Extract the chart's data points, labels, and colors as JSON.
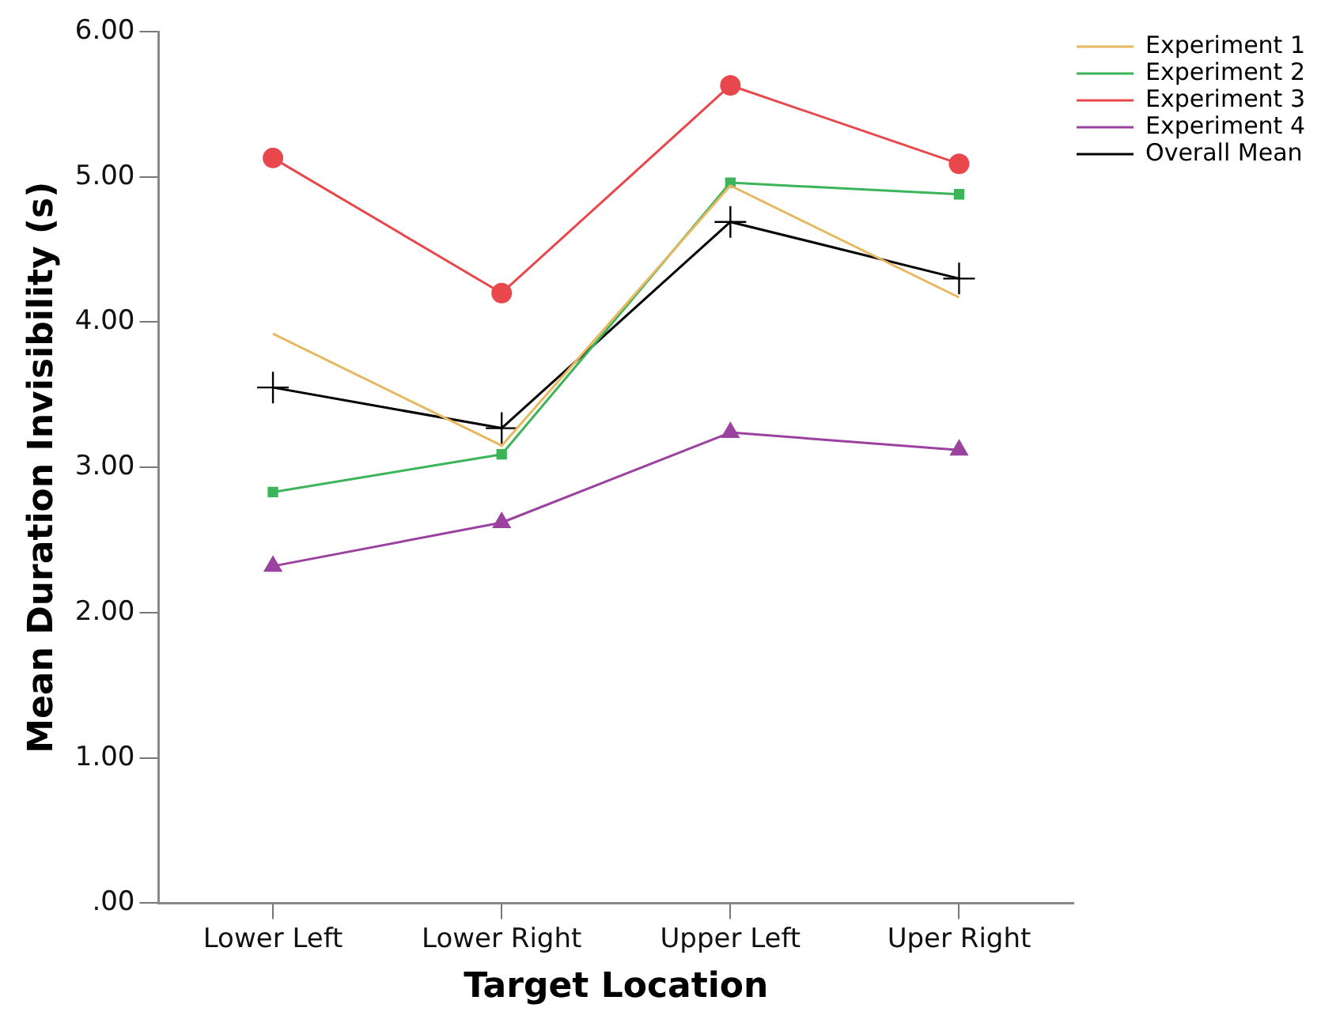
{
  "chart_data": {
    "type": "line",
    "xlabel": "Target Location",
    "ylabel": "Mean Duration Invisibility (s)",
    "categories": [
      "Lower Left",
      "Lower Right",
      "Upper Left",
      "Uper Right"
    ],
    "ylim": [
      0,
      6
    ],
    "yticks": [
      {
        "value": 0,
        "label": ".00"
      },
      {
        "value": 1,
        "label": "1.00"
      },
      {
        "value": 2,
        "label": "2.00"
      },
      {
        "value": 3,
        "label": "3.00"
      },
      {
        "value": 4,
        "label": "4.00"
      },
      {
        "value": 5,
        "label": "5.00"
      },
      {
        "value": 6,
        "label": "6.00"
      }
    ],
    "grid": false,
    "legend": "top right",
    "series": [
      {
        "name": "Experiment 1",
        "color": "#e8b860",
        "marker": "none",
        "values": [
          3.92,
          3.15,
          4.94,
          4.17
        ]
      },
      {
        "name": "Experiment 2",
        "color": "#3cb55a",
        "marker": "square",
        "values": [
          2.83,
          3.09,
          4.96,
          4.88
        ]
      },
      {
        "name": "Experiment 3",
        "color": "#e8484c",
        "marker": "circle",
        "values": [
          5.13,
          4.2,
          5.63,
          5.09
        ]
      },
      {
        "name": "Experiment 4",
        "color": "#9b42a0",
        "marker": "triangle",
        "values": [
          2.32,
          2.62,
          3.24,
          3.12
        ]
      },
      {
        "name": "Overall Mean",
        "color": "#000000",
        "marker": "cross",
        "values": [
          3.55,
          3.27,
          4.69,
          4.3
        ]
      }
    ]
  }
}
